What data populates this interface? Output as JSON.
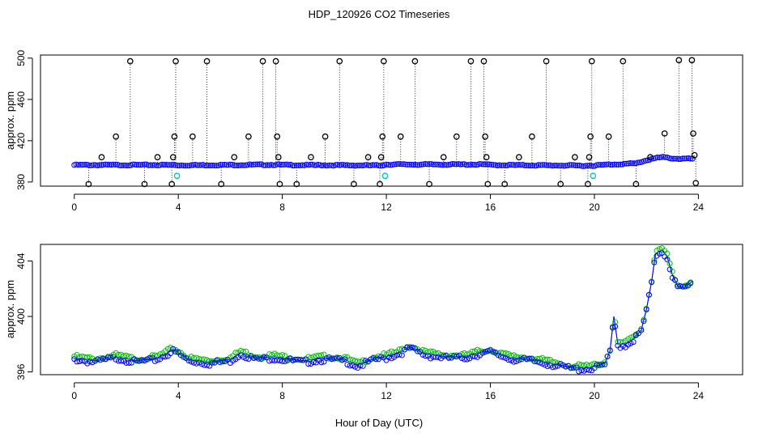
{
  "chart_data": [
    {
      "type": "scatter",
      "title": "HDP_120926  CO2 Timeseries",
      "ylabel": "approx. ppm",
      "xlim": [
        -1.3,
        25.7
      ],
      "ylim": [
        376,
        503
      ],
      "x_ticks": [
        "0",
        "4",
        "8",
        "12",
        "16",
        "20",
        "24"
      ],
      "y_ticks": [
        "380",
        "420",
        "460",
        "500"
      ],
      "colors": {
        "baseline": "#0000ff",
        "outlier": "#000000",
        "flag": "#00c0c0"
      },
      "baseline": [
        {
          "x": 0.0,
          "y": 396.5
        },
        {
          "x": 3.8,
          "y": 396.5
        },
        {
          "x": 4.0,
          "y": 396.2
        },
        {
          "x": 7.8,
          "y": 396.8
        },
        {
          "x": 8.0,
          "y": 396.5
        },
        {
          "x": 11.8,
          "y": 396.0
        },
        {
          "x": 12.0,
          "y": 397.0
        },
        {
          "x": 15.8,
          "y": 397.0
        },
        {
          "x": 16.0,
          "y": 396.5
        },
        {
          "x": 19.8,
          "y": 395.8
        },
        {
          "x": 20.0,
          "y": 396.0
        },
        {
          "x": 20.6,
          "y": 397.0
        },
        {
          "x": 21.6,
          "y": 398.0
        },
        {
          "x": 22.2,
          "y": 402.5
        },
        {
          "x": 22.6,
          "y": 404.0
        },
        {
          "x": 23.2,
          "y": 402.5
        },
        {
          "x": 23.8,
          "y": 402.5
        }
      ],
      "outliers": [
        {
          "x": 0.55,
          "y": 378
        },
        {
          "x": 1.05,
          "y": 404
        },
        {
          "x": 1.6,
          "y": 424
        },
        {
          "x": 2.15,
          "y": 497
        },
        {
          "x": 2.7,
          "y": 378
        },
        {
          "x": 3.2,
          "y": 404
        },
        {
          "x": 3.75,
          "y": 378
        },
        {
          "x": 3.8,
          "y": 404
        },
        {
          "x": 3.85,
          "y": 424
        },
        {
          "x": 3.9,
          "y": 497
        },
        {
          "x": 4.55,
          "y": 424
        },
        {
          "x": 5.1,
          "y": 497
        },
        {
          "x": 5.65,
          "y": 378
        },
        {
          "x": 6.15,
          "y": 404
        },
        {
          "x": 6.7,
          "y": 424
        },
        {
          "x": 7.25,
          "y": 497
        },
        {
          "x": 7.75,
          "y": 497
        },
        {
          "x": 7.8,
          "y": 424
        },
        {
          "x": 7.85,
          "y": 404
        },
        {
          "x": 7.9,
          "y": 378
        },
        {
          "x": 8.55,
          "y": 378
        },
        {
          "x": 9.1,
          "y": 404
        },
        {
          "x": 9.65,
          "y": 424
        },
        {
          "x": 10.2,
          "y": 497
        },
        {
          "x": 10.75,
          "y": 378
        },
        {
          "x": 11.3,
          "y": 404
        },
        {
          "x": 11.75,
          "y": 378
        },
        {
          "x": 11.8,
          "y": 404
        },
        {
          "x": 11.85,
          "y": 424
        },
        {
          "x": 11.9,
          "y": 497
        },
        {
          "x": 12.55,
          "y": 424
        },
        {
          "x": 13.1,
          "y": 497
        },
        {
          "x": 13.65,
          "y": 378
        },
        {
          "x": 14.2,
          "y": 404
        },
        {
          "x": 14.7,
          "y": 424
        },
        {
          "x": 15.25,
          "y": 497
        },
        {
          "x": 15.75,
          "y": 497
        },
        {
          "x": 15.8,
          "y": 424
        },
        {
          "x": 15.85,
          "y": 404
        },
        {
          "x": 15.9,
          "y": 378
        },
        {
          "x": 16.55,
          "y": 378
        },
        {
          "x": 17.1,
          "y": 404
        },
        {
          "x": 17.6,
          "y": 424
        },
        {
          "x": 18.15,
          "y": 497
        },
        {
          "x": 18.7,
          "y": 378
        },
        {
          "x": 19.25,
          "y": 404
        },
        {
          "x": 19.75,
          "y": 378
        },
        {
          "x": 19.8,
          "y": 404
        },
        {
          "x": 19.85,
          "y": 424
        },
        {
          "x": 19.9,
          "y": 497
        },
        {
          "x": 20.55,
          "y": 424
        },
        {
          "x": 21.1,
          "y": 497
        },
        {
          "x": 21.6,
          "y": 378
        },
        {
          "x": 22.15,
          "y": 404
        },
        {
          "x": 22.7,
          "y": 427
        },
        {
          "x": 23.25,
          "y": 498
        },
        {
          "x": 23.75,
          "y": 498
        },
        {
          "x": 23.8,
          "y": 427
        },
        {
          "x": 23.85,
          "y": 406
        },
        {
          "x": 23.9,
          "y": 379
        }
      ],
      "flags": [
        {
          "x": 3.95,
          "y": 386
        },
        {
          "x": 11.95,
          "y": 386
        },
        {
          "x": 19.95,
          "y": 386
        }
      ]
    },
    {
      "type": "line",
      "xlabel": "Hour of Day (UTC)",
      "ylabel": "approx. ppm",
      "xlim": [
        -1.3,
        25.7
      ],
      "ylim": [
        395.8,
        405.2
      ],
      "x_ticks": [
        "0",
        "4",
        "8",
        "12",
        "16",
        "20",
        "24"
      ],
      "y_ticks": [
        "396",
        "400",
        "404"
      ],
      "colors": {
        "series": "#0000ff",
        "secondary": "#00c000"
      },
      "series": [
        {
          "values": [
            {
              "x": 0.0,
              "y": 397.0
            },
            {
              "x": 0.8,
              "y": 396.8
            },
            {
              "x": 1.6,
              "y": 397.1
            },
            {
              "x": 2.4,
              "y": 396.8
            },
            {
              "x": 3.2,
              "y": 397.0
            },
            {
              "x": 3.8,
              "y": 397.6
            },
            {
              "x": 4.0,
              "y": 397.4
            },
            {
              "x": 4.4,
              "y": 396.9
            },
            {
              "x": 5.2,
              "y": 396.7
            },
            {
              "x": 6.0,
              "y": 396.9
            },
            {
              "x": 6.4,
              "y": 397.4
            },
            {
              "x": 7.0,
              "y": 397.0
            },
            {
              "x": 7.7,
              "y": 397.1
            },
            {
              "x": 8.0,
              "y": 397.0
            },
            {
              "x": 8.8,
              "y": 396.8
            },
            {
              "x": 9.6,
              "y": 397.0
            },
            {
              "x": 10.4,
              "y": 396.9
            },
            {
              "x": 10.9,
              "y": 396.5
            },
            {
              "x": 11.6,
              "y": 397.0
            },
            {
              "x": 12.0,
              "y": 397.1
            },
            {
              "x": 12.5,
              "y": 397.4
            },
            {
              "x": 12.9,
              "y": 397.8
            },
            {
              "x": 13.5,
              "y": 397.3
            },
            {
              "x": 14.3,
              "y": 397.1
            },
            {
              "x": 15.0,
              "y": 397.1
            },
            {
              "x": 15.6,
              "y": 397.4
            },
            {
              "x": 16.0,
              "y": 397.5
            },
            {
              "x": 16.8,
              "y": 397.0
            },
            {
              "x": 17.6,
              "y": 396.9
            },
            {
              "x": 18.4,
              "y": 396.6
            },
            {
              "x": 19.2,
              "y": 396.3
            },
            {
              "x": 19.8,
              "y": 396.3
            },
            {
              "x": 20.0,
              "y": 396.4
            },
            {
              "x": 20.4,
              "y": 396.6
            },
            {
              "x": 20.6,
              "y": 397.5
            },
            {
              "x": 20.75,
              "y": 400.0
            },
            {
              "x": 20.9,
              "y": 398.0
            },
            {
              "x": 21.2,
              "y": 398.0
            },
            {
              "x": 21.5,
              "y": 398.4
            },
            {
              "x": 21.8,
              "y": 399.0
            },
            {
              "x": 22.0,
              "y": 400.5
            },
            {
              "x": 22.2,
              "y": 402.5
            },
            {
              "x": 22.35,
              "y": 404.5
            },
            {
              "x": 22.6,
              "y": 404.8
            },
            {
              "x": 22.8,
              "y": 404.3
            },
            {
              "x": 23.0,
              "y": 403.0
            },
            {
              "x": 23.2,
              "y": 402.2
            },
            {
              "x": 23.45,
              "y": 402.1
            },
            {
              "x": 23.75,
              "y": 402.5
            }
          ]
        }
      ]
    }
  ]
}
